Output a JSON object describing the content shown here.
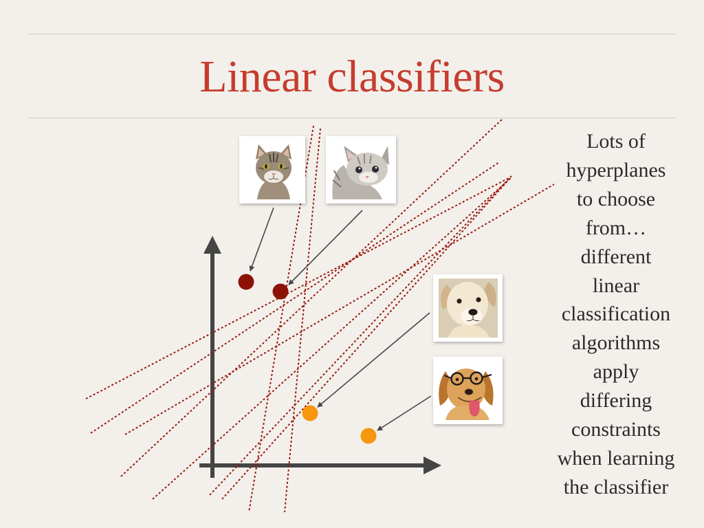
{
  "slide": {
    "title": "Linear classifiers",
    "caption_lines": [
      "Lots of",
      "hyperplanes",
      "to choose",
      "from…",
      "different",
      "linear",
      "classification",
      "algorithms",
      "apply",
      "differing",
      "constraints",
      "when learning",
      "the classifier"
    ]
  },
  "colors": {
    "title": "#c63c2f",
    "hyperplane": "#9a1a12",
    "cat_point": "#8c1208",
    "dog_point": "#f7960f",
    "axis": "#454545"
  },
  "photos": [
    {
      "label": "tabby-cat",
      "icon": "cat-photo-icon"
    },
    {
      "label": "kitten",
      "icon": "kitten-photo-icon"
    },
    {
      "label": "puppy",
      "icon": "puppy-photo-icon"
    },
    {
      "label": "dog-with-glasses",
      "icon": "dog-photo-icon"
    }
  ]
}
